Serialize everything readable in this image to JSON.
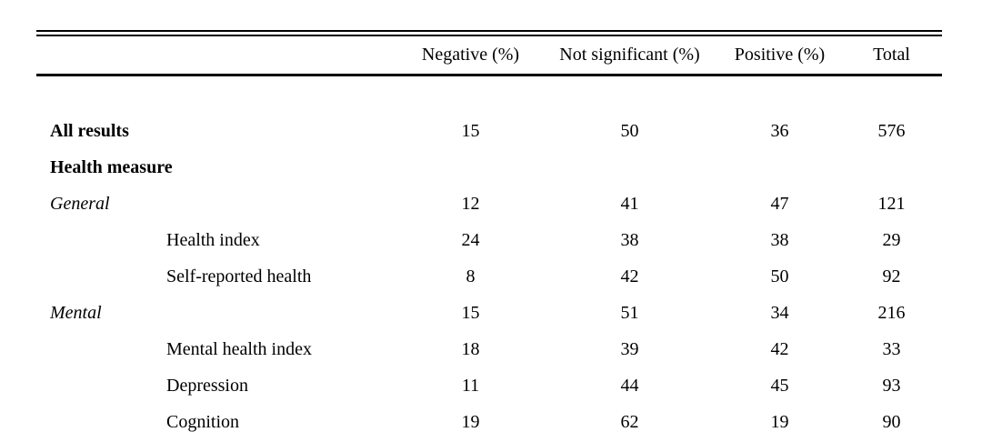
{
  "table": {
    "columns": [
      "",
      "Negative (%)",
      "Not significant (%)",
      "Positive (%)",
      "Total"
    ],
    "rows": [
      {
        "label": "All results",
        "style": "bold",
        "indent": 0,
        "values": [
          "15",
          "50",
          "36",
          "576"
        ]
      },
      {
        "label": "Health measure",
        "style": "bold",
        "indent": 0,
        "values": [
          "",
          "",
          "",
          ""
        ]
      },
      {
        "label": "General",
        "style": "italic",
        "indent": 0,
        "values": [
          "12",
          "41",
          "47",
          "121"
        ]
      },
      {
        "label": "Health index",
        "style": "normal",
        "indent": 1,
        "values": [
          "24",
          "38",
          "38",
          "29"
        ]
      },
      {
        "label": "Self-reported health",
        "style": "normal",
        "indent": 1,
        "values": [
          "8",
          "42",
          "50",
          "92"
        ]
      },
      {
        "label": "Mental",
        "style": "italic",
        "indent": 0,
        "values": [
          "15",
          "51",
          "34",
          "216"
        ]
      },
      {
        "label": "Mental health index",
        "style": "normal",
        "indent": 1,
        "values": [
          "18",
          "39",
          "42",
          "33"
        ]
      },
      {
        "label": "Depression",
        "style": "normal",
        "indent": 1,
        "values": [
          "11",
          "44",
          "45",
          "93"
        ]
      },
      {
        "label": "Cognition",
        "style": "normal",
        "indent": 1,
        "values": [
          "19",
          "62",
          "19",
          "90"
        ]
      }
    ]
  },
  "colors": {
    "text": "#000000",
    "rule": "#000000",
    "background": "#ffffff"
  }
}
